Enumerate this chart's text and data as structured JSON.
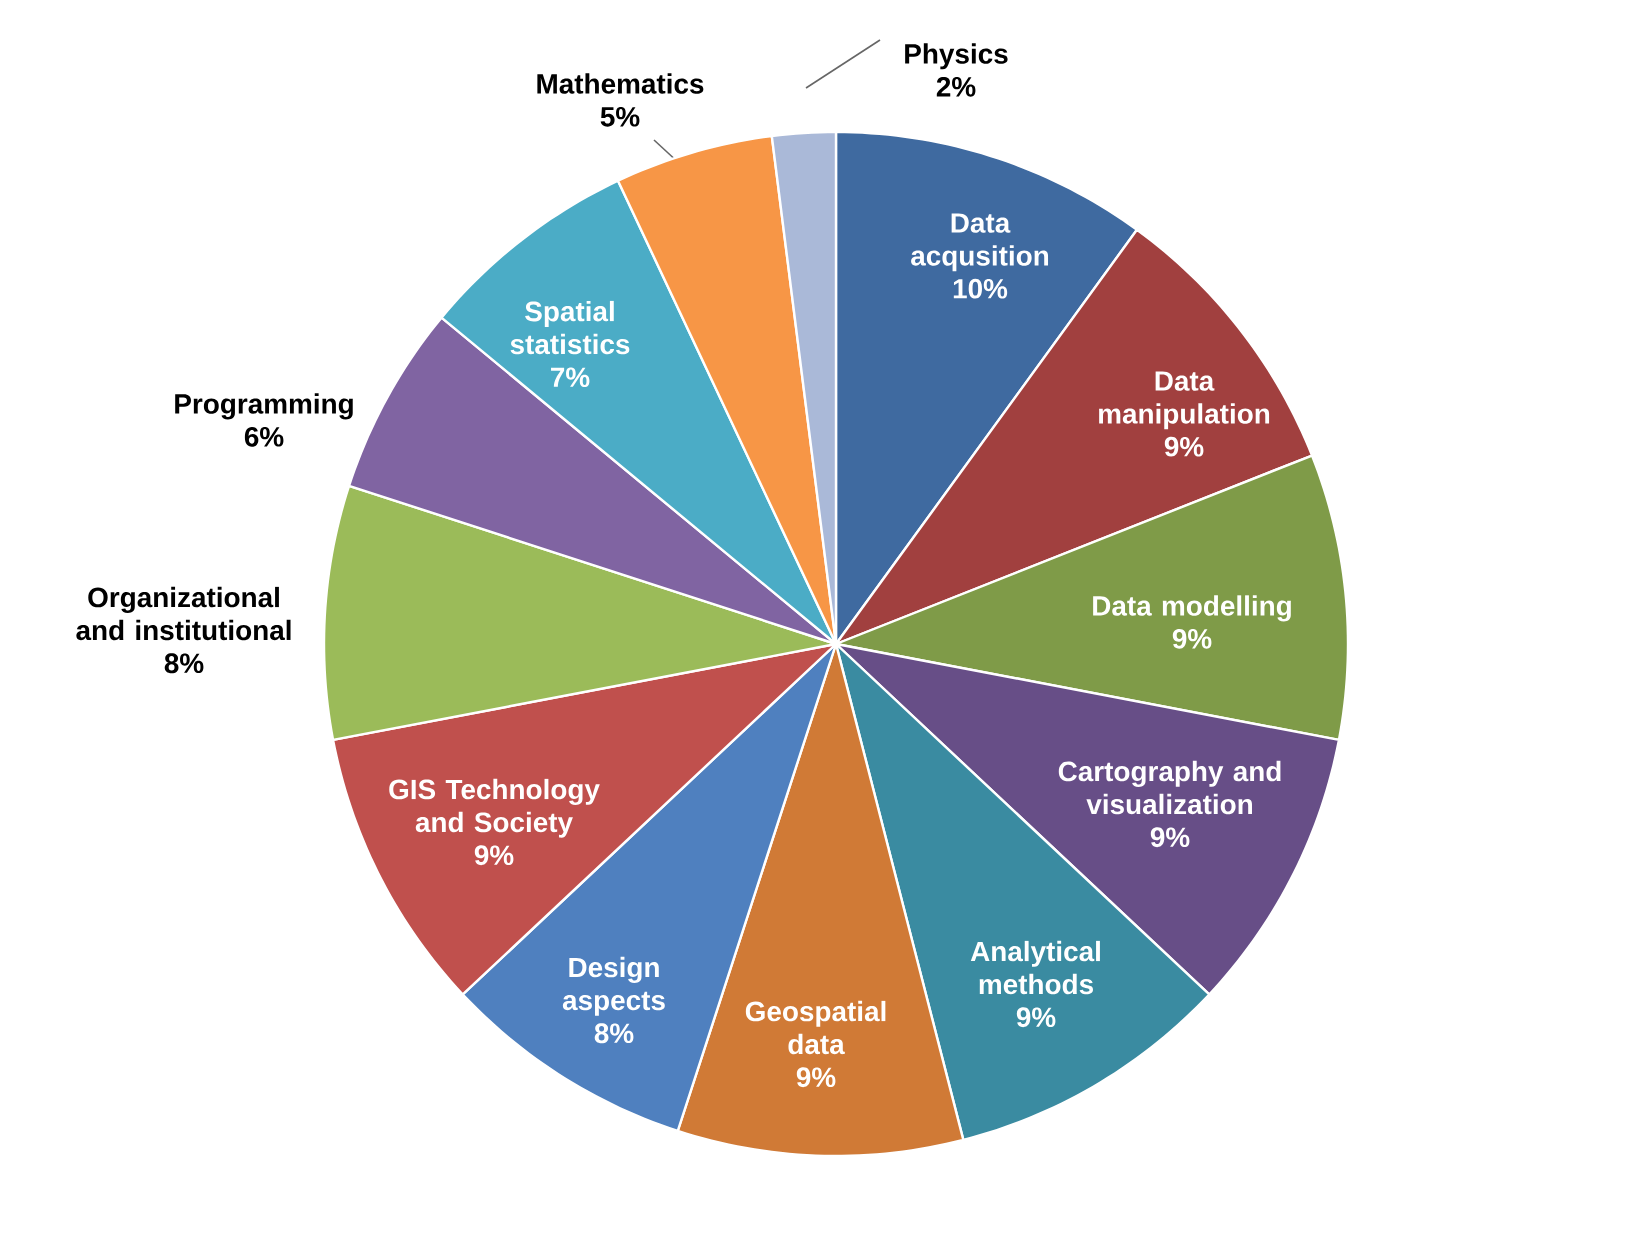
{
  "chart_data": {
    "type": "pie",
    "categories": [
      "Data acqusition",
      "Data manipulation",
      "Data modelling",
      "Cartography and visualization",
      "Analytical methods",
      "Geospatial data",
      "Design aspects",
      "GIS Technology and Society",
      "Organizational and institutional",
      "Programming",
      "Spatial statistics",
      "Mathematics",
      "Physics"
    ],
    "values": [
      10,
      9,
      9,
      9,
      9,
      9,
      8,
      9,
      8,
      6,
      7,
      5,
      2
    ],
    "value_labels": [
      "10%",
      "9%",
      "9%",
      "9%",
      "9%",
      "9%",
      "8%",
      "9%",
      "8%",
      "6%",
      "7%",
      "5%",
      "2%"
    ],
    "colors": [
      "#3f6aa0",
      "#a1403f",
      "#7f9b48",
      "#674e87",
      "#3a8ba1",
      "#d07a36",
      "#4f80bf",
      "#c0504d",
      "#9bbb59",
      "#8064a2",
      "#4bacc6",
      "#f79646",
      "#aab9d8"
    ]
  }
}
